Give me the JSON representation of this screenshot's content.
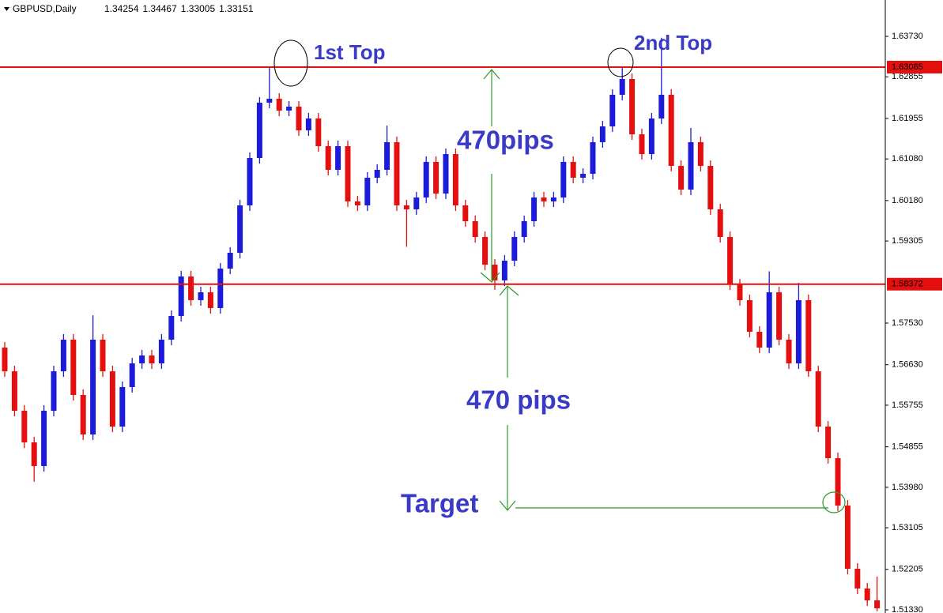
{
  "chart_data": {
    "type": "candlestick",
    "title": "GBPUSD,Daily",
    "header_ohlc": [
      1.34254,
      1.34467,
      1.33005,
      1.33151
    ],
    "annotations": [
      "1st Top",
      "2nd Top",
      "470pips",
      "470 pips",
      "Target"
    ],
    "up_color": "#1c1cd8",
    "down_color": "#e41010",
    "line_color": "#e41010",
    "hlines": [
      1.63065,
      1.58372
    ],
    "ylim": [
      1.51262,
      1.64516
    ],
    "yticks": [
      {
        "value": 1.6373,
        "label": "1.63730"
      },
      1.62855,
      1.61955,
      {
        "value": 1.6108,
        "label": "1.61080"
      },
      {
        "value": 1.6018,
        "label": "1.60180"
      },
      1.59305,
      {
        "value": 1.5753,
        "label": "1.57530"
      },
      {
        "value": 1.5663,
        "label": "1.56630"
      },
      1.55755,
      1.54855,
      {
        "value": 1.5398,
        "label": "1.53980"
      },
      1.53105,
      1.52205,
      {
        "value": 1.5133,
        "label": "1.51330"
      }
    ],
    "open": [
      1.57,
      1.56488,
      1.55634,
      1.54951,
      1.54439,
      1.55634,
      1.56488,
      1.57172,
      1.55976,
      1.55122,
      1.57172,
      1.56488,
      1.55293,
      1.56147,
      1.56659,
      1.5683,
      1.56659,
      1.57172,
      1.57684,
      1.58538,
      1.58026,
      1.58196,
      1.57855,
      1.58709,
      1.5905,
      1.60075,
      1.611,
      1.62296,
      1.62381,
      1.62125,
      1.6221,
      1.61698,
      1.61954,
      1.61356,
      1.60844,
      1.61356,
      1.60161,
      1.60075,
      1.60673,
      1.60844,
      1.61442,
      1.60075,
      1.5999,
      1.60246,
      1.61015,
      1.60331,
      1.61185,
      1.60075,
      1.59734,
      1.59392,
      1.58794,
      1.58453,
      1.5888,
      1.59392,
      1.59734,
      1.60246,
      1.60161,
      1.60246,
      1.61015,
      1.60673,
      1.60758,
      1.61442,
      1.61783,
      1.62466,
      1.62808,
      1.61612,
      1.61185,
      1.61954,
      1.62466,
      1.60929,
      1.60417,
      1.61442,
      1.60929,
      1.5999,
      1.59392,
      1.58367,
      1.58026,
      1.57342,
      1.57001,
      1.58196,
      1.57172,
      1.56659,
      1.58026,
      1.56488,
      1.55293,
      1.5461,
      1.53585,
      1.52218,
      1.51791,
      1.51536
    ],
    "high": [
      1.5712,
      1.56608,
      1.55754,
      1.55071,
      1.55754,
      1.56608,
      1.57292,
      1.57292,
      1.56096,
      1.577,
      1.57292,
      1.56608,
      1.56267,
      1.56779,
      1.5695,
      1.5695,
      1.57292,
      1.57804,
      1.58658,
      1.58658,
      1.58316,
      1.58316,
      1.58829,
      1.5917,
      1.60195,
      1.6122,
      1.62416,
      1.63065,
      1.62501,
      1.6233,
      1.6233,
      1.62074,
      1.62074,
      1.61476,
      1.61476,
      1.61476,
      1.60281,
      1.60793,
      1.60964,
      1.618,
      1.61562,
      1.60195,
      1.60366,
      1.61135,
      1.61135,
      1.61305,
      1.61305,
      1.60195,
      1.59854,
      1.59512,
      1.58914,
      1.59,
      1.59512,
      1.59854,
      1.60366,
      1.60366,
      1.60366,
      1.61135,
      1.61135,
      1.60878,
      1.61562,
      1.61903,
      1.62586,
      1.63065,
      1.62928,
      1.61732,
      1.62074,
      1.637,
      1.62586,
      1.61049,
      1.6175,
      1.61562,
      1.61049,
      1.6011,
      1.59512,
      1.58487,
      1.58146,
      1.57462,
      1.5865,
      1.58316,
      1.57292,
      1.584,
      1.58146,
      1.56608,
      1.55413,
      1.5473,
      1.53705,
      1.52338,
      1.51911,
      1.5205
    ],
    "low": [
      1.56368,
      1.55514,
      1.54831,
      1.541,
      1.54319,
      1.55514,
      1.56368,
      1.55856,
      1.55002,
      1.55002,
      1.56368,
      1.55173,
      1.55173,
      1.56027,
      1.56539,
      1.56539,
      1.56539,
      1.57052,
      1.57564,
      1.57906,
      1.57906,
      1.57735,
      1.57735,
      1.58589,
      1.5893,
      1.59955,
      1.6098,
      1.62176,
      1.62005,
      1.62005,
      1.61578,
      1.61578,
      1.61236,
      1.60724,
      1.60724,
      1.60041,
      1.59955,
      1.59955,
      1.60553,
      1.60724,
      1.59955,
      1.5918,
      1.5987,
      1.60126,
      1.60211,
      1.60211,
      1.59955,
      1.59614,
      1.59272,
      1.58674,
      1.5825,
      1.58333,
      1.5876,
      1.59272,
      1.59614,
      1.60041,
      1.60041,
      1.60126,
      1.60553,
      1.60553,
      1.60638,
      1.61322,
      1.61663,
      1.62346,
      1.61492,
      1.61065,
      1.61065,
      1.61834,
      1.60809,
      1.60297,
      1.60297,
      1.60809,
      1.5987,
      1.59272,
      1.58247,
      1.57906,
      1.57222,
      1.56881,
      1.56881,
      1.57052,
      1.56539,
      1.56539,
      1.56368,
      1.55173,
      1.5449,
      1.53465,
      1.52098,
      1.51671,
      1.51416,
      1.513
    ],
    "close": [
      1.56488,
      1.55634,
      1.54951,
      1.54439,
      1.55634,
      1.56488,
      1.57172,
      1.55976,
      1.55122,
      1.57172,
      1.56488,
      1.55293,
      1.56147,
      1.56659,
      1.5683,
      1.56659,
      1.57172,
      1.57684,
      1.58538,
      1.58026,
      1.58196,
      1.57855,
      1.58709,
      1.5905,
      1.60075,
      1.611,
      1.62296,
      1.62381,
      1.62125,
      1.6221,
      1.61698,
      1.61954,
      1.61356,
      1.60844,
      1.61356,
      1.60161,
      1.60075,
      1.60673,
      1.60844,
      1.61442,
      1.60075,
      1.5999,
      1.60246,
      1.61015,
      1.60331,
      1.61185,
      1.60075,
      1.59734,
      1.59392,
      1.58794,
      1.58453,
      1.5888,
      1.59392,
      1.59734,
      1.60246,
      1.60161,
      1.60246,
      1.61015,
      1.60673,
      1.60758,
      1.61442,
      1.61783,
      1.62466,
      1.62808,
      1.61612,
      1.61185,
      1.61954,
      1.62466,
      1.60929,
      1.60417,
      1.61442,
      1.60929,
      1.5999,
      1.59392,
      1.58367,
      1.58026,
      1.57342,
      1.57001,
      1.58196,
      1.57172,
      1.56659,
      1.58026,
      1.56488,
      1.55293,
      1.5461,
      1.53585,
      1.52218,
      1.51791,
      1.51536,
      1.51364
    ]
  }
}
